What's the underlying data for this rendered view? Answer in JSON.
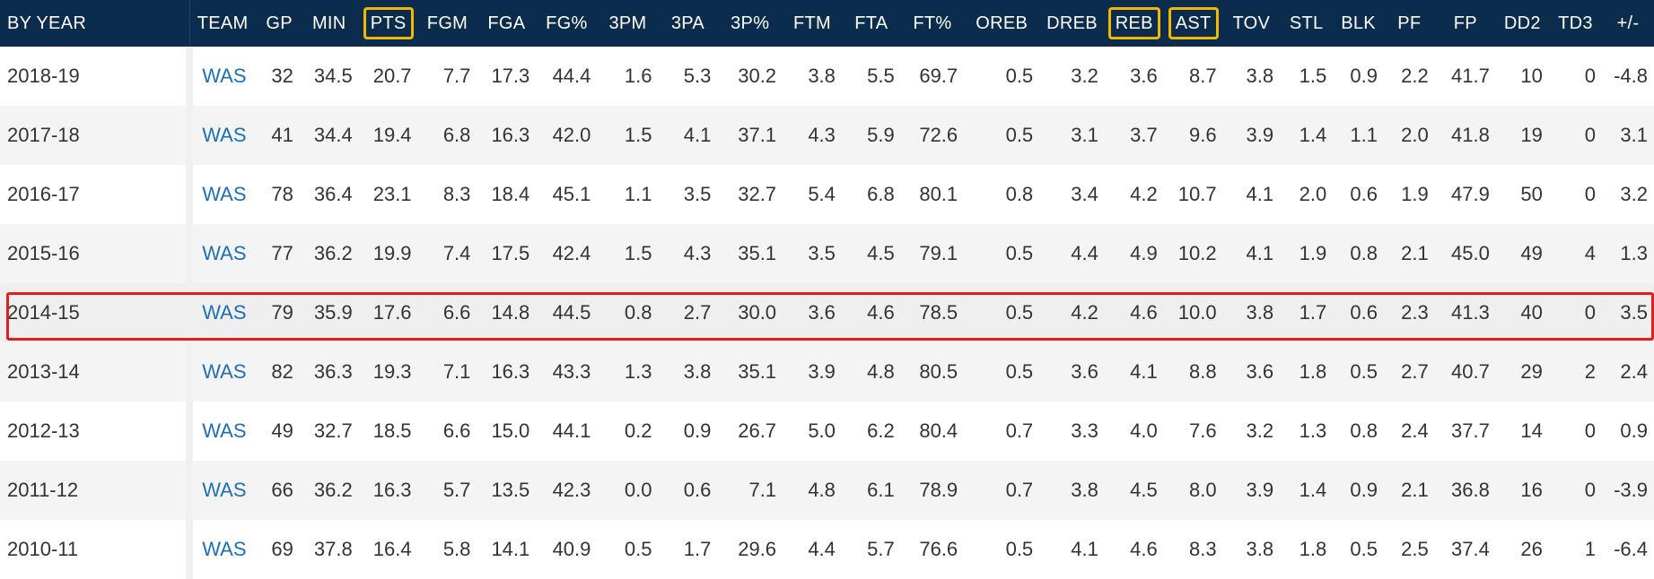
{
  "columns": [
    "BY YEAR",
    "TEAM",
    "GP",
    "MIN",
    "PTS",
    "FGM",
    "FGA",
    "FG%",
    "3PM",
    "3PA",
    "3P%",
    "FTM",
    "FTA",
    "FT%",
    "OREB",
    "DREB",
    "REB",
    "AST",
    "TOV",
    "STL",
    "BLK",
    "PF",
    "FP",
    "DD2",
    "TD3",
    "+/-"
  ],
  "highlighted_columns": [
    "PTS",
    "REB",
    "AST"
  ],
  "highlight_color": "#f5b800",
  "selection_color": "#e02020",
  "header_bg": "#0b2c4d",
  "team_link_color": "#1d6fb8",
  "selected_row": "2014-15",
  "rows": [
    [
      "2018-19",
      "WAS",
      "32",
      "34.5",
      "20.7",
      "7.7",
      "17.3",
      "44.4",
      "1.6",
      "5.3",
      "30.2",
      "3.8",
      "5.5",
      "69.7",
      "0.5",
      "3.2",
      "3.6",
      "8.7",
      "3.8",
      "1.5",
      "0.9",
      "2.2",
      "41.7",
      "10",
      "0",
      "-4.8"
    ],
    [
      "2017-18",
      "WAS",
      "41",
      "34.4",
      "19.4",
      "6.8",
      "16.3",
      "42.0",
      "1.5",
      "4.1",
      "37.1",
      "4.3",
      "5.9",
      "72.6",
      "0.5",
      "3.1",
      "3.7",
      "9.6",
      "3.9",
      "1.4",
      "1.1",
      "2.0",
      "41.8",
      "19",
      "0",
      "3.1"
    ],
    [
      "2016-17",
      "WAS",
      "78",
      "36.4",
      "23.1",
      "8.3",
      "18.4",
      "45.1",
      "1.1",
      "3.5",
      "32.7",
      "5.4",
      "6.8",
      "80.1",
      "0.8",
      "3.4",
      "4.2",
      "10.7",
      "4.1",
      "2.0",
      "0.6",
      "1.9",
      "47.9",
      "50",
      "0",
      "3.2"
    ],
    [
      "2015-16",
      "WAS",
      "77",
      "36.2",
      "19.9",
      "7.4",
      "17.5",
      "42.4",
      "1.5",
      "4.3",
      "35.1",
      "3.5",
      "4.5",
      "79.1",
      "0.5",
      "4.4",
      "4.9",
      "10.2",
      "4.1",
      "1.9",
      "0.8",
      "2.1",
      "45.0",
      "49",
      "4",
      "1.3"
    ],
    [
      "2014-15",
      "WAS",
      "79",
      "35.9",
      "17.6",
      "6.6",
      "14.8",
      "44.5",
      "0.8",
      "2.7",
      "30.0",
      "3.6",
      "4.6",
      "78.5",
      "0.5",
      "4.2",
      "4.6",
      "10.0",
      "3.8",
      "1.7",
      "0.6",
      "2.3",
      "41.3",
      "40",
      "0",
      "3.5"
    ],
    [
      "2013-14",
      "WAS",
      "82",
      "36.3",
      "19.3",
      "7.1",
      "16.3",
      "43.3",
      "1.3",
      "3.8",
      "35.1",
      "3.9",
      "4.8",
      "80.5",
      "0.5",
      "3.6",
      "4.1",
      "8.8",
      "3.6",
      "1.8",
      "0.5",
      "2.7",
      "40.7",
      "29",
      "2",
      "2.4"
    ],
    [
      "2012-13",
      "WAS",
      "49",
      "32.7",
      "18.5",
      "6.6",
      "15.0",
      "44.1",
      "0.2",
      "0.9",
      "26.7",
      "5.0",
      "6.2",
      "80.4",
      "0.7",
      "3.3",
      "4.0",
      "7.6",
      "3.2",
      "1.3",
      "0.8",
      "2.4",
      "37.7",
      "14",
      "0",
      "0.9"
    ],
    [
      "2011-12",
      "WAS",
      "66",
      "36.2",
      "16.3",
      "5.7",
      "13.5",
      "42.3",
      "0.0",
      "0.6",
      "7.1",
      "4.8",
      "6.1",
      "78.9",
      "0.7",
      "3.8",
      "4.5",
      "8.0",
      "3.9",
      "1.4",
      "0.9",
      "2.1",
      "36.8",
      "16",
      "0",
      "-3.9"
    ],
    [
      "2010-11",
      "WAS",
      "69",
      "37.8",
      "16.4",
      "5.8",
      "14.1",
      "40.9",
      "0.5",
      "1.7",
      "29.6",
      "4.4",
      "5.7",
      "76.6",
      "0.5",
      "4.1",
      "4.6",
      "8.3",
      "3.8",
      "1.8",
      "0.5",
      "2.5",
      "37.4",
      "26",
      "1",
      "-6.4"
    ]
  ]
}
